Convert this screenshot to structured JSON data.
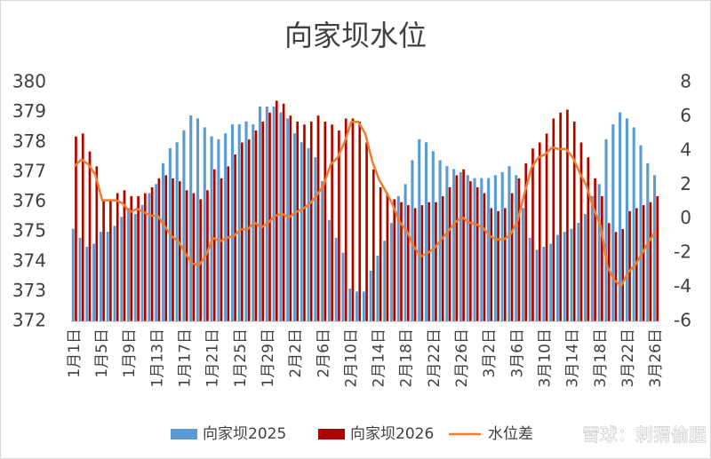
{
  "chart_data": {
    "type": "bar",
    "title": "向家坝水位",
    "categories": [
      "1月1日",
      null,
      null,
      null,
      "1月5日",
      null,
      null,
      null,
      "1月9日",
      null,
      null,
      null,
      "1月13日",
      null,
      null,
      null,
      "1月17日",
      null,
      null,
      null,
      "1月21日",
      null,
      null,
      null,
      "1月25日",
      null,
      null,
      null,
      "1月29日",
      null,
      null,
      null,
      "2月2日",
      null,
      null,
      null,
      "2月6日",
      null,
      null,
      null,
      "2月10日",
      null,
      null,
      null,
      "2月14日",
      null,
      null,
      null,
      "2月18日",
      null,
      null,
      null,
      "2月22日",
      null,
      null,
      null,
      "2月26日",
      null,
      null,
      null,
      "3月2日",
      null,
      null,
      null,
      "3月6日",
      null,
      null,
      null,
      "3月10日",
      null,
      null,
      null,
      "3月14日",
      null,
      null,
      null,
      "3月18日",
      null,
      null,
      null,
      "3月22日",
      null,
      null,
      null,
      "3月26日"
    ],
    "series": [
      {
        "name": "向家坝2025",
        "color": "#5b9bd5",
        "values": [
          375.1,
          374.8,
          374.5,
          374.6,
          375.0,
          375.0,
          375.2,
          375.5,
          375.8,
          375.6,
          375.9,
          376.3,
          376.6,
          377.3,
          377.8,
          378.0,
          378.4,
          378.9,
          378.8,
          378.5,
          378.2,
          378.1,
          378.3,
          378.6,
          378.6,
          378.7,
          378.6,
          379.2,
          379.2,
          379.2,
          379.0,
          378.8,
          378.3,
          378.0,
          377.8,
          377.5,
          376.7,
          375.4,
          374.8,
          374.3,
          373.1,
          373.0,
          373.0,
          373.7,
          374.2,
          374.7,
          375.3,
          376.2,
          376.6,
          377.4,
          378.1,
          378.0,
          377.7,
          377.4,
          377.2,
          377.1,
          377.0,
          376.9,
          376.8,
          376.8,
          376.8,
          376.9,
          377.0,
          377.2,
          376.9,
          375.8,
          374.8,
          374.4,
          374.5,
          374.6,
          374.9,
          375.0,
          375.1,
          375.3,
          375.6,
          376.2,
          376.6,
          378.1,
          378.6,
          379.0,
          378.8,
          378.5,
          377.9,
          377.3,
          376.9
        ]
      },
      {
        "name": "向家坝2026",
        "color": "#b00000",
        "values": [
          378.2,
          378.3,
          377.7,
          377.2,
          376.1,
          376.1,
          376.3,
          376.4,
          376.2,
          376.2,
          376.3,
          376.5,
          376.8,
          376.9,
          376.8,
          376.7,
          376.4,
          376.3,
          376.1,
          376.4,
          377.1,
          376.8,
          377.2,
          377.6,
          378.0,
          378.1,
          378.4,
          378.7,
          379.0,
          379.4,
          379.3,
          378.9,
          378.7,
          378.6,
          378.7,
          378.9,
          378.7,
          378.6,
          378.4,
          378.8,
          378.8,
          378.7,
          378.0,
          377.1,
          376.5,
          376.3,
          376.1,
          376.0,
          375.9,
          375.8,
          375.9,
          376.0,
          376.0,
          376.2,
          376.5,
          376.9,
          377.1,
          376.7,
          376.5,
          376.3,
          375.8,
          375.7,
          375.8,
          376.3,
          376.8,
          377.3,
          377.8,
          378.0,
          378.3,
          378.8,
          379.0,
          379.1,
          378.7,
          378.0,
          377.5,
          376.8,
          376.2,
          375.3,
          375.0,
          375.1,
          375.7,
          375.8,
          375.9,
          376.0,
          376.2
        ]
      },
      {
        "name": "水位差",
        "color": "#ed7d31",
        "type": "line",
        "axis": "y2",
        "values": [
          3.1,
          3.5,
          3.2,
          2.6,
          1.1,
          1.1,
          1.1,
          0.9,
          0.4,
          0.6,
          0.4,
          0.2,
          0.2,
          -0.4,
          -1.0,
          -1.3,
          -2.0,
          -2.6,
          -2.7,
          -2.1,
          -1.1,
          -1.3,
          -1.1,
          -1.0,
          -0.6,
          -0.6,
          -0.2,
          -0.5,
          -0.2,
          0.2,
          0.3,
          0.1,
          0.4,
          0.6,
          0.9,
          1.4,
          2.0,
          3.2,
          3.6,
          4.5,
          5.7,
          5.7,
          5.0,
          3.4,
          2.3,
          1.6,
          0.8,
          -0.2,
          -0.7,
          -1.6,
          -2.2,
          -2.0,
          -1.7,
          -1.2,
          -0.7,
          -0.2,
          0.1,
          -0.2,
          -0.3,
          -0.5,
          -1.0,
          -1.2,
          -1.2,
          -0.9,
          -0.1,
          1.5,
          3.0,
          3.6,
          3.8,
          4.2,
          4.1,
          4.1,
          3.6,
          2.7,
          1.9,
          0.6,
          -0.4,
          -2.8,
          -3.6,
          -3.9,
          -3.1,
          -2.7,
          -2.0,
          -1.3,
          -0.7
        ]
      }
    ],
    "ylim": [
      372,
      380
    ],
    "yticks": [
      372,
      373,
      374,
      375,
      376,
      377,
      378,
      379,
      380
    ],
    "y2lim": [
      -6,
      8
    ],
    "y2ticks": [
      -6,
      -4,
      -2,
      0,
      2,
      4,
      6,
      8
    ],
    "grid": false,
    "legend": "bottom",
    "watermark": "雪球：刺猬偷腥"
  }
}
